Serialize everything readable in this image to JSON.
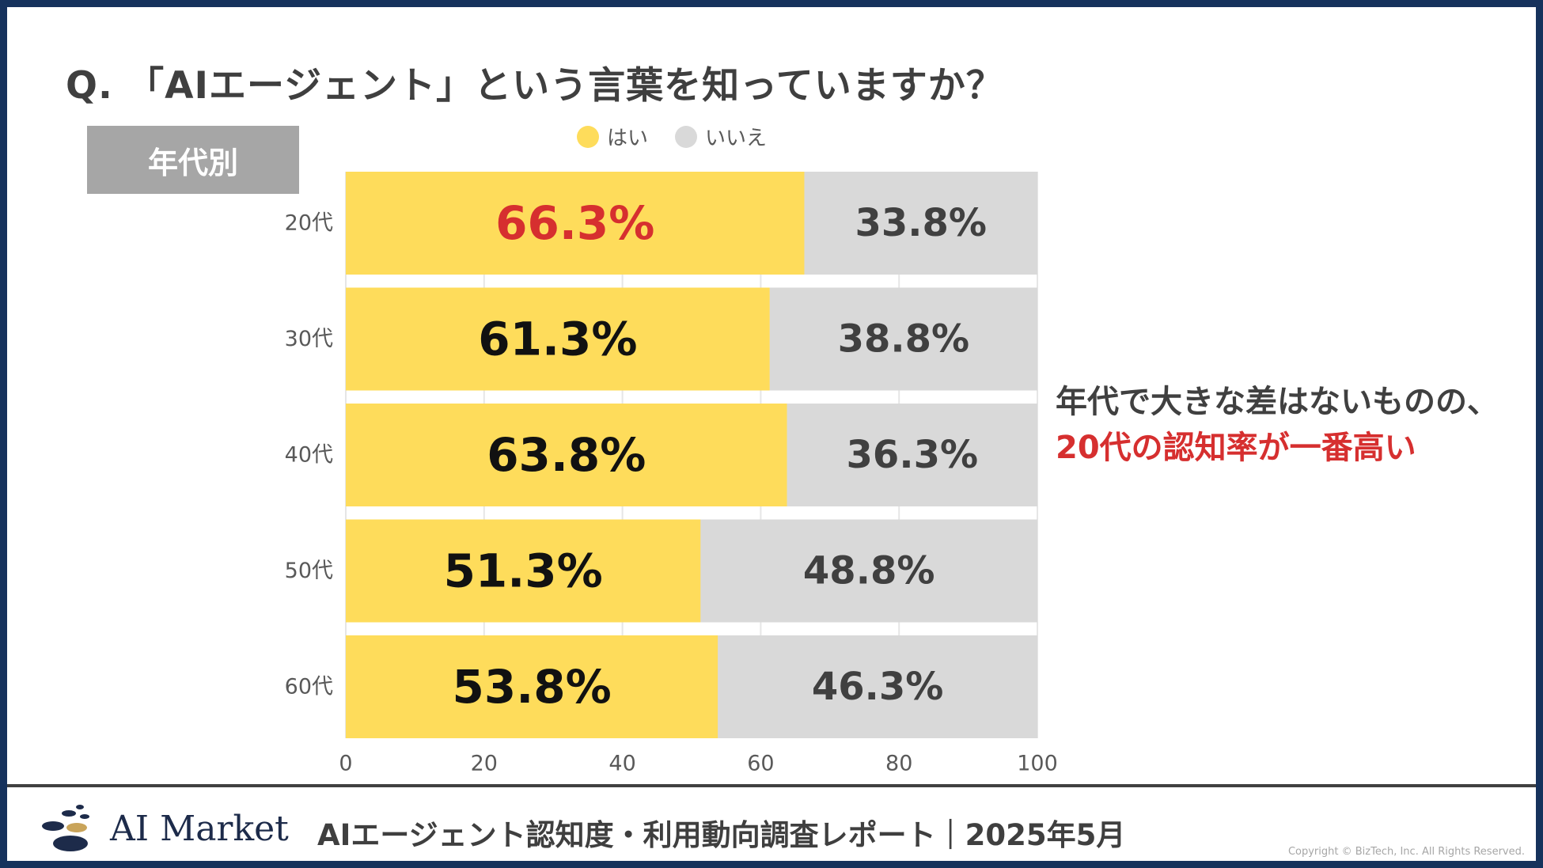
{
  "question": "Q. 「AIエージェント」という言葉を知っていますか？",
  "segment_tag": "年代別",
  "legend": [
    {
      "label": "はい",
      "color": "#fedc5b"
    },
    {
      "label": "いいえ",
      "color": "#d9d9d9"
    }
  ],
  "chart_data": {
    "type": "bar",
    "orientation": "horizontal",
    "stacked": true,
    "categories": [
      "20代",
      "30代",
      "40代",
      "50代",
      "60代"
    ],
    "series": [
      {
        "name": "はい",
        "values": [
          66.3,
          61.3,
          63.8,
          51.3,
          53.8
        ],
        "labels": [
          "66.3%",
          "61.3%",
          "63.8%",
          "51.3%",
          "53.8%"
        ],
        "color": "#fedc5b"
      },
      {
        "name": "いいえ",
        "values": [
          33.8,
          38.8,
          36.3,
          48.8,
          46.3
        ],
        "labels": [
          "33.8%",
          "38.8%",
          "36.3%",
          "48.8%",
          "46.3%"
        ],
        "color": "#d9d9d9"
      }
    ],
    "highlight_color": "#d62f2f",
    "highlight_index": 0,
    "xlim": [
      0,
      100
    ],
    "xticks": [
      "0",
      "20",
      "40",
      "60",
      "80",
      "100"
    ],
    "xlabel": "",
    "ylabel": "",
    "grid": true,
    "legend_position": "top"
  },
  "annotation": {
    "line1": "年代で大きな差はないものの、",
    "line2": "20代の認知率が一番高い"
  },
  "footer": {
    "logo_text": "AI Market",
    "report_title": "AIエージェント認知度・利用動向調査レポート｜2025年5月",
    "copyright": "Copyright © BizTech, Inc. All Rights Reserved."
  }
}
